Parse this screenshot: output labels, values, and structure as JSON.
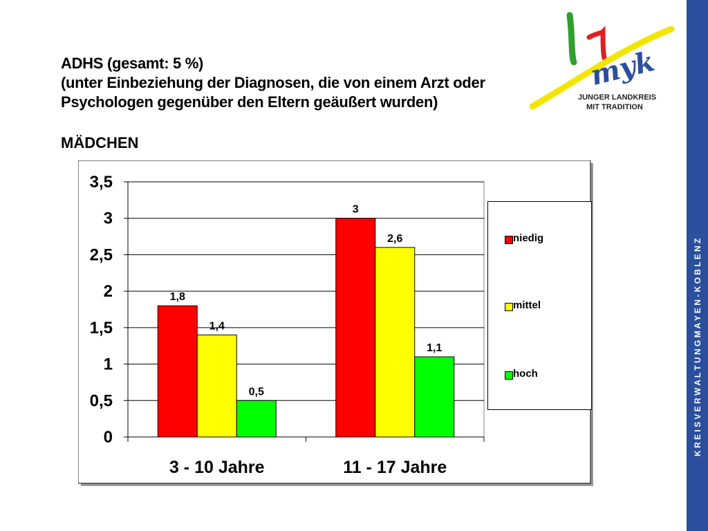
{
  "title": {
    "line1": "ADHS  (gesamt: 5 %)",
    "line2": "(unter Einbeziehung der Diagnosen, die von einem Arzt oder",
    "line3": "Psychologen gegenüber den Eltern geäußert wurden)"
  },
  "subtitle": "MÄDCHEN",
  "logo": {
    "mark": "myk",
    "line1": "JUNGER LANDKREIS",
    "line2": "MIT TRADITION"
  },
  "sidebar_text": "K R E I S V E R W A L T U N G   M A Y E N - K O B L E N Z",
  "colors": {
    "niedig": "#ff0000",
    "mittel": "#ffff00",
    "hoch": "#00ff00",
    "sidebar": "#2b4f9c"
  },
  "chart_data": {
    "type": "bar",
    "categories": [
      "3 - 10 Jahre",
      "11 - 17 Jahre"
    ],
    "series": [
      {
        "name": "niedig",
        "values": [
          1.8,
          3.0
        ],
        "labels": [
          "1,8",
          "3"
        ]
      },
      {
        "name": "mittel",
        "values": [
          1.4,
          2.6
        ],
        "labels": [
          "1,4",
          "2,6"
        ]
      },
      {
        "name": "hoch",
        "values": [
          0.5,
          1.1
        ],
        "labels": [
          "0,5",
          "1,1"
        ]
      }
    ],
    "yticks": [
      "0",
      "0,5",
      "1",
      "1,5",
      "2",
      "2,5",
      "3",
      "3,5"
    ],
    "ylim": [
      0,
      3.5
    ],
    "grid": true,
    "legend": "right"
  }
}
